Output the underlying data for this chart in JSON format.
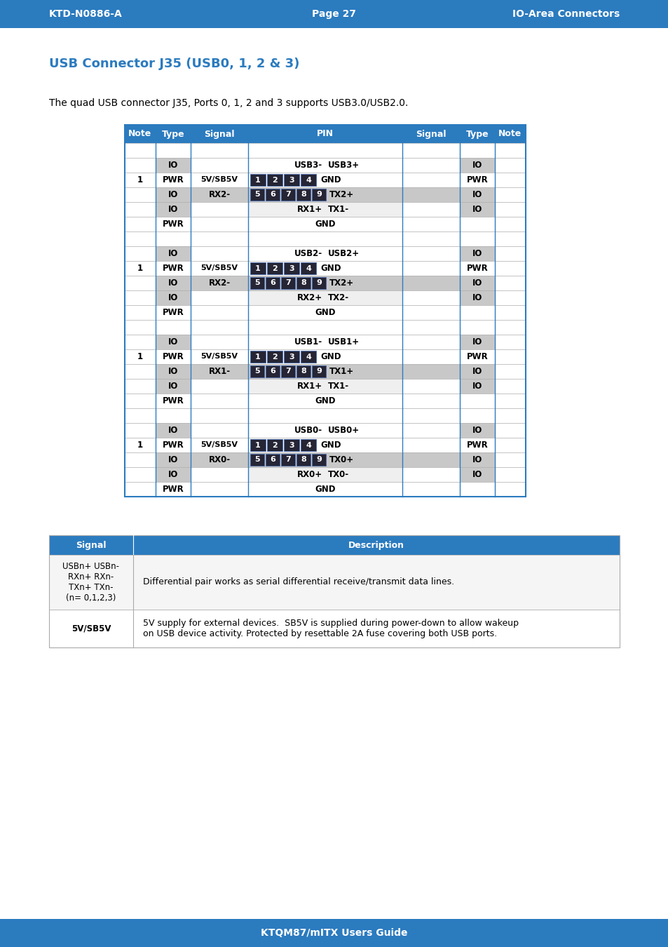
{
  "header_bar_color": "#2B7BBF",
  "header_text_color": "#FFFFFF",
  "header_left": "KTD-N0886-A",
  "header_center": "Page 27",
  "header_right": "IO-Area Connectors",
  "footer_bar_color": "#2B7BBF",
  "footer_text": "KTQM87/mITX Users Guide",
  "footer_text_color": "#FFFFFF",
  "title_text": "USB Connector J35 (USB0, 1, 2 & 3)",
  "title_color": "#2B7BBF",
  "body_text": "The quad USB connector J35, Ports 0, 1, 2 and 3 supports USB3.0/USB2.0.",
  "table_header_bg": "#2B7BBF",
  "table_header_fg": "#FFFFFF",
  "C_GRAY": "#C8C8C8",
  "C_LIGHT": "#EFEFEF",
  "C_WHITE": "#FFFFFF",
  "C_PIN": "#252535",
  "C_BLUE": "#2B7BBF",
  "desc_header_bg": "#2B7BBF",
  "desc_header_fg": "#FFFFFF",
  "ports": [
    {
      "io_usb_left": "USB3-",
      "io_usb_right": "USB3+",
      "pwr_signal_l": "5V/SB5V",
      "pwr_signal_r": "GND",
      "io59_signal_l": "RX2-",
      "io59_signal_r": "TX2+",
      "io_rxtx_left": "RX1+",
      "io_rxtx_right": "TX1-"
    },
    {
      "io_usb_left": "USB2-",
      "io_usb_right": "USB2+",
      "pwr_signal_l": "5V/SB5V",
      "pwr_signal_r": "GND",
      "io59_signal_l": "RX2-",
      "io59_signal_r": "TX2+",
      "io_rxtx_left": "RX2+",
      "io_rxtx_right": "TX2-"
    },
    {
      "io_usb_left": "USB1-",
      "io_usb_right": "USB1+",
      "pwr_signal_l": "5V/SB5V",
      "pwr_signal_r": "GND",
      "io59_signal_l": "RX1-",
      "io59_signal_r": "TX1+",
      "io_rxtx_left": "RX1+",
      "io_rxtx_right": "TX1-"
    },
    {
      "io_usb_left": "USB0-",
      "io_usb_right": "USB0+",
      "pwr_signal_l": "5V/SB5V",
      "pwr_signal_r": "GND",
      "io59_signal_l": "RX0-",
      "io59_signal_r": "TX0+",
      "io_rxtx_left": "RX0+",
      "io_rxtx_right": "TX0-"
    }
  ]
}
